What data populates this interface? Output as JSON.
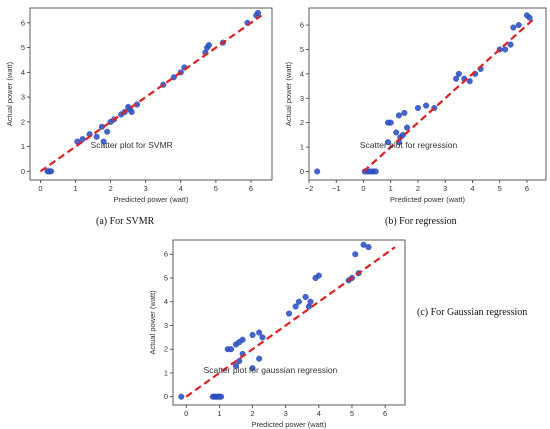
{
  "chart_data": [
    {
      "type": "scatter",
      "title": "",
      "annotation": "Scatter plot for SVMR",
      "xlabel": "Predicted power (watt)",
      "ylabel": "Actual power (watt)",
      "xlim": [
        -0.3,
        6.6
      ],
      "ylim": [
        -0.35,
        6.6
      ],
      "xticks": [
        0,
        1,
        2,
        3,
        4,
        5,
        6
      ],
      "yticks": [
        0,
        1,
        2,
        3,
        4,
        5,
        6
      ],
      "caption": "(a) For SVMR",
      "points": [
        [
          0.2,
          0
        ],
        [
          0.25,
          0
        ],
        [
          0.3,
          0
        ],
        [
          1.05,
          1.2
        ],
        [
          1.2,
          1.3
        ],
        [
          1.4,
          1.5
        ],
        [
          1.6,
          1.4
        ],
        [
          1.75,
          1.8
        ],
        [
          1.8,
          1.2
        ],
        [
          1.9,
          1.6
        ],
        [
          2.0,
          2.0
        ],
        [
          2.1,
          2.1
        ],
        [
          2.3,
          2.3
        ],
        [
          2.4,
          2.4
        ],
        [
          2.5,
          2.6
        ],
        [
          2.55,
          2.5
        ],
        [
          2.6,
          2.4
        ],
        [
          2.75,
          2.7
        ],
        [
          3.5,
          3.5
        ],
        [
          3.8,
          3.8
        ],
        [
          4.0,
          4.0
        ],
        [
          4.1,
          4.2
        ],
        [
          4.7,
          4.8
        ],
        [
          4.75,
          5.0
        ],
        [
          4.8,
          5.1
        ],
        [
          5.2,
          5.2
        ],
        [
          5.9,
          6.0
        ],
        [
          6.15,
          6.3
        ],
        [
          6.2,
          6.4
        ]
      ],
      "fit_line": {
        "x": [
          0,
          6.3
        ],
        "y": [
          0,
          6.3
        ]
      }
    },
    {
      "type": "scatter",
      "title": "",
      "annotation": "Scatter plot for regression",
      "xlabel": "Predicted power (watt)",
      "ylabel": "Actual power (watt)",
      "xlim": [
        -2.0,
        6.7
      ],
      "ylim": [
        -0.35,
        6.7
      ],
      "xticks": [
        -2,
        -1,
        0,
        1,
        2,
        3,
        4,
        5,
        6
      ],
      "yticks": [
        0,
        1,
        2,
        3,
        4,
        5,
        6
      ],
      "caption": "(b) For regression",
      "points": [
        [
          -1.7,
          0
        ],
        [
          0.05,
          0
        ],
        [
          0.15,
          0
        ],
        [
          0.25,
          0
        ],
        [
          0.35,
          0
        ],
        [
          0.45,
          0
        ],
        [
          0.9,
          1.2
        ],
        [
          0.9,
          2.0
        ],
        [
          1.0,
          2.0
        ],
        [
          1.2,
          1.6
        ],
        [
          1.3,
          1.2
        ],
        [
          1.35,
          1.4
        ],
        [
          1.45,
          1.5
        ],
        [
          1.5,
          2.4
        ],
        [
          1.6,
          1.8
        ],
        [
          1.3,
          2.3
        ],
        [
          2.0,
          2.6
        ],
        [
          2.3,
          2.7
        ],
        [
          2.6,
          2.6
        ],
        [
          3.4,
          3.8
        ],
        [
          3.5,
          4.0
        ],
        [
          3.7,
          3.8
        ],
        [
          3.9,
          3.7
        ],
        [
          4.1,
          4.0
        ],
        [
          4.3,
          4.2
        ],
        [
          5.0,
          5.0
        ],
        [
          5.2,
          5.0
        ],
        [
          5.4,
          5.2
        ],
        [
          5.5,
          5.9
        ],
        [
          5.7,
          6.0
        ],
        [
          6.0,
          6.4
        ],
        [
          6.1,
          6.3
        ]
      ],
      "fit_line": {
        "x": [
          0,
          6.3
        ],
        "y": [
          0,
          6.3
        ]
      }
    },
    {
      "type": "scatter",
      "title": "",
      "annotation": "Scatter plot for gaussian regression",
      "xlabel": "Predicted power (watt)",
      "ylabel": "Actual power (watt)",
      "xlim": [
        -0.4,
        6.6
      ],
      "ylim": [
        -0.35,
        6.6
      ],
      "xticks": [
        0,
        1,
        2,
        3,
        4,
        5,
        6
      ],
      "yticks": [
        0,
        1,
        2,
        3,
        4,
        5,
        6
      ],
      "caption": "(c) For Gaussian regression",
      "points": [
        [
          -0.15,
          0
        ],
        [
          0.8,
          0
        ],
        [
          0.85,
          0
        ],
        [
          0.9,
          0
        ],
        [
          0.95,
          0
        ],
        [
          1.0,
          0
        ],
        [
          1.05,
          0
        ],
        [
          1.25,
          2.0
        ],
        [
          1.35,
          2.0
        ],
        [
          1.5,
          1.3
        ],
        [
          1.6,
          1.5
        ],
        [
          1.5,
          2.2
        ],
        [
          1.6,
          2.3
        ],
        [
          1.7,
          2.4
        ],
        [
          1.7,
          1.8
        ],
        [
          2.0,
          1.2
        ],
        [
          2.0,
          2.6
        ],
        [
          2.2,
          2.7
        ],
        [
          2.3,
          2.5
        ],
        [
          2.2,
          1.6
        ],
        [
          3.1,
          3.5
        ],
        [
          3.3,
          3.8
        ],
        [
          3.4,
          4.0
        ],
        [
          3.6,
          4.2
        ],
        [
          3.7,
          3.8
        ],
        [
          3.75,
          4.0
        ],
        [
          3.9,
          5.0
        ],
        [
          4.0,
          5.1
        ],
        [
          4.9,
          4.9
        ],
        [
          5.0,
          5.0
        ],
        [
          5.2,
          5.2
        ],
        [
          5.1,
          6.0
        ],
        [
          5.35,
          6.4
        ],
        [
          5.5,
          6.3
        ]
      ],
      "fit_line": {
        "x": [
          0,
          6.3
        ],
        "y": [
          0,
          6.3
        ]
      }
    }
  ]
}
